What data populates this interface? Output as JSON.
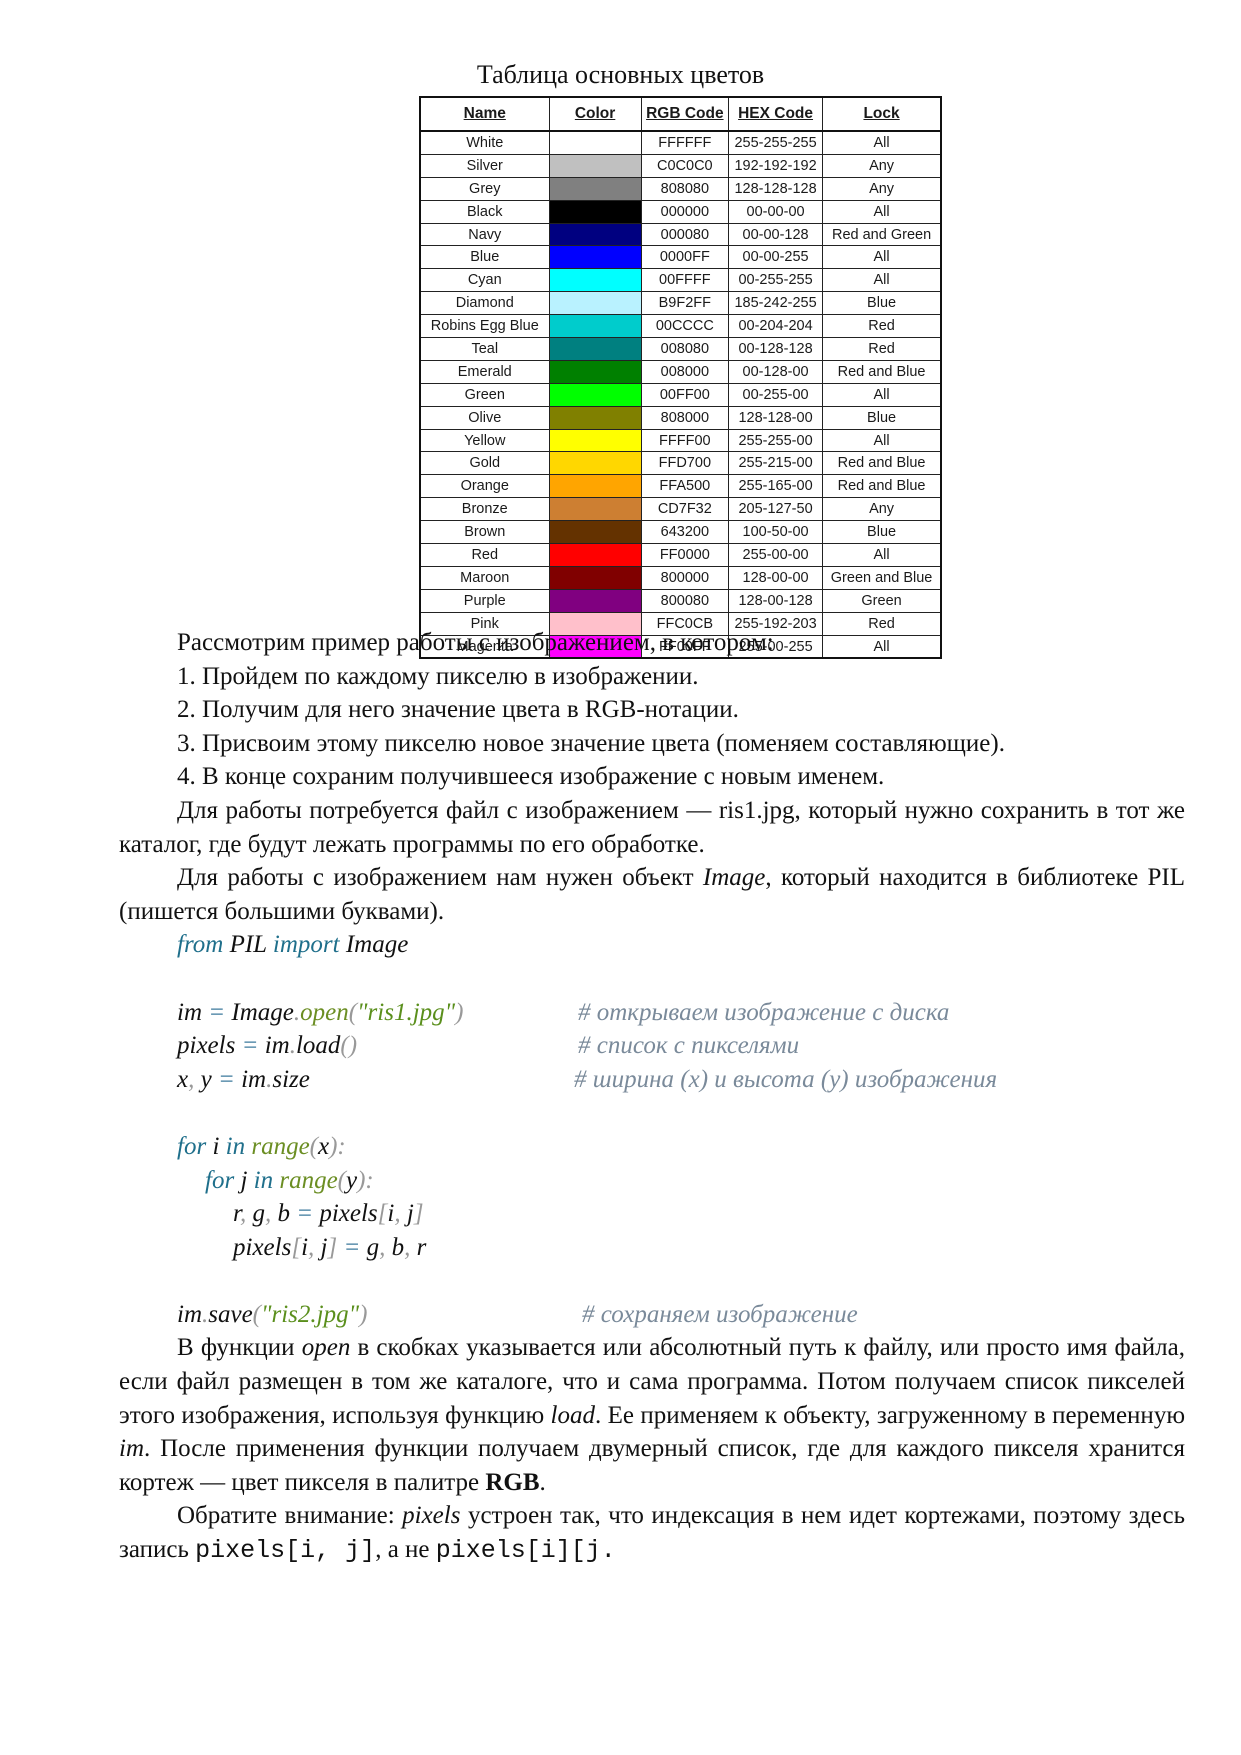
{
  "caption": "Таблица основных цветов",
  "table": {
    "headers": [
      "Name",
      "Color",
      "RGB Code",
      "HEX Code",
      "Lock"
    ],
    "rows": [
      {
        "name": "White",
        "swatch": "#FFFFFF",
        "rgb": "FFFFFF",
        "hex": "255-255-255",
        "lock": "All"
      },
      {
        "name": "Silver",
        "swatch": "#C0C0C0",
        "rgb": "C0C0C0",
        "hex": "192-192-192",
        "lock": "Any"
      },
      {
        "name": "Grey",
        "swatch": "#808080",
        "rgb": "808080",
        "hex": "128-128-128",
        "lock": "Any"
      },
      {
        "name": "Black",
        "swatch": "#000000",
        "rgb": "000000",
        "hex": "00-00-00",
        "lock": "All"
      },
      {
        "name": "Navy",
        "swatch": "#000080",
        "rgb": "000080",
        "hex": "00-00-128",
        "lock": "Red and Green"
      },
      {
        "name": "Blue",
        "swatch": "#0000FF",
        "rgb": "0000FF",
        "hex": "00-00-255",
        "lock": "All"
      },
      {
        "name": "Cyan",
        "swatch": "#00FFFF",
        "rgb": "00FFFF",
        "hex": "00-255-255",
        "lock": "All"
      },
      {
        "name": "Diamond",
        "swatch": "#B9F2FF",
        "rgb": "B9F2FF",
        "hex": "185-242-255",
        "lock": "Blue"
      },
      {
        "name": "Robins Egg Blue",
        "swatch": "#00CCCC",
        "rgb": "00CCCC",
        "hex": "00-204-204",
        "lock": "Red"
      },
      {
        "name": "Teal",
        "swatch": "#008080",
        "rgb": "008080",
        "hex": "00-128-128",
        "lock": "Red"
      },
      {
        "name": "Emerald",
        "swatch": "#008000",
        "rgb": "008000",
        "hex": "00-128-00",
        "lock": "Red and Blue"
      },
      {
        "name": "Green",
        "swatch": "#00FF00",
        "rgb": "00FF00",
        "hex": "00-255-00",
        "lock": "All"
      },
      {
        "name": "Olive",
        "swatch": "#808000",
        "rgb": "808000",
        "hex": "128-128-00",
        "lock": "Blue"
      },
      {
        "name": "Yellow",
        "swatch": "#FFFF00",
        "rgb": "FFFF00",
        "hex": "255-255-00",
        "lock": "All"
      },
      {
        "name": "Gold",
        "swatch": "#FFD700",
        "rgb": "FFD700",
        "hex": "255-215-00",
        "lock": "Red and Blue"
      },
      {
        "name": "Orange",
        "swatch": "#FFA500",
        "rgb": "FFA500",
        "hex": "255-165-00",
        "lock": "Red and Blue"
      },
      {
        "name": "Bronze",
        "swatch": "#CD7F32",
        "rgb": "CD7F32",
        "hex": "205-127-50",
        "lock": "Any"
      },
      {
        "name": "Brown",
        "swatch": "#643200",
        "rgb": "643200",
        "hex": "100-50-00",
        "lock": "Blue"
      },
      {
        "name": "Red",
        "swatch": "#FF0000",
        "rgb": "FF0000",
        "hex": "255-00-00",
        "lock": "All"
      },
      {
        "name": "Maroon",
        "swatch": "#800000",
        "rgb": "800000",
        "hex": "128-00-00",
        "lock": "Green and Blue"
      },
      {
        "name": "Purple",
        "swatch": "#800080",
        "rgb": "800080",
        "hex": "128-00-128",
        "lock": "Green"
      },
      {
        "name": "Pink",
        "swatch": "#FFC0CB",
        "rgb": "FFC0CB",
        "hex": "255-192-203",
        "lock": "Red"
      },
      {
        "name": "Magenta",
        "swatch": "#FF00FF",
        "rgb": "FF00FF",
        "hex": "255-00-255",
        "lock": "All"
      }
    ]
  },
  "intro": "Рассмотрим пример работы с изображением, в котором:",
  "steps": [
    "1. Пройдем по каждому пикселю в изображении.",
    "2. Получим для него значение цвета в RGB-нотации.",
    "3. Присвоим этому пикселю новое значение цвета (поменяем составляющие).",
    "4. В конце сохраним получившееся изображение с новым именем."
  ],
  "para_file": "Для работы потребуется файл с изображением — ris1.jpg, который нужно сохранить в тот же каталог, где будут лежать программы по его обработке.",
  "para_image": {
    "before": "Для работы с изображением нам нужен объект ",
    "obj": "Image",
    "after": ", который находится в библиотеке PIL (пишется большими буквами)."
  },
  "code": {
    "import": {
      "kw1": "from",
      "mod": " PIL ",
      "kw2": "import",
      "name": " Image"
    },
    "open": {
      "a": "im",
      "eq": " = ",
      "b": "Image",
      "dot": ".",
      "fn": "open",
      "p1": "(",
      "s": "\"ris1.jpg\"",
      "p2": ")",
      "comment": "# открываем изображение с диска"
    },
    "load": {
      "a": "pixels",
      "eq": " = ",
      "b": "im",
      "dot": ".",
      "fn": "load",
      "p": "()",
      "comment": "# список с пикселями"
    },
    "size": {
      "a": "x",
      "c": ",",
      "b": " y",
      "eq": " = ",
      "d": "im",
      "dot": ".",
      "e": "size",
      "comment": "# ширина (x) и высота (y) изображения"
    },
    "for1": {
      "kw": "for",
      "v": " i ",
      "kw2": "in",
      "fn": " range",
      "p1": "(",
      "arg": "x",
      "p2": "):"
    },
    "for2": {
      "kw": "for",
      "v": " j ",
      "kw2": "in",
      "fn": " range",
      "p1": "(",
      "arg": "y",
      "p2": "):"
    },
    "unpack": {
      "a": "r",
      "c1": ",",
      "b": " g",
      "c2": ",",
      "c": " b",
      "eq": " = ",
      "d": "pixels",
      "p1": "[",
      "e": "i",
      "c3": ",",
      "f": " j",
      "p2": "]"
    },
    "assign": {
      "a": "pixels",
      "p1": "[",
      "b": "i",
      "c1": ",",
      "c": " j",
      "p2": "]",
      "eq": " = ",
      "d": "g",
      "c2": ",",
      "e": " b",
      "c3": ",",
      "f": " r"
    },
    "save": {
      "a": "im",
      "dot": ".",
      "fn": "save",
      "p1": "(",
      "s": "\"ris2.jpg\"",
      "p2": ")",
      "comment": "# сохраняем изображение"
    }
  },
  "para_open": {
    "t1": "В функции ",
    "i1": "open",
    "t2": " в скобках указывается или абсолютный путь к файлу, или просто имя файла, если файл размещен в том же каталоге, что и сама программа. Потом получаем список пикселей этого изображения, используя функцию ",
    "i2": "load",
    "t3": ". Ее применяем к объекту, загруженному в переменную ",
    "i3": "im",
    "t4": ". После применения функции получаем двумерный список, где для каждого пикселя хранится кортеж — цвет пикселя в палитре ",
    "b1": "RGB",
    "t5": "."
  },
  "para_note": {
    "t1": "Обратите внимание: ",
    "i1": "pixels",
    "t2": " устроен так, что индексация в нем идет кортежами, поэтому здесь запись ",
    "m1": "pixels[i, j]",
    "t3": ", а не ",
    "m2": "pixels[i][j."
  }
}
